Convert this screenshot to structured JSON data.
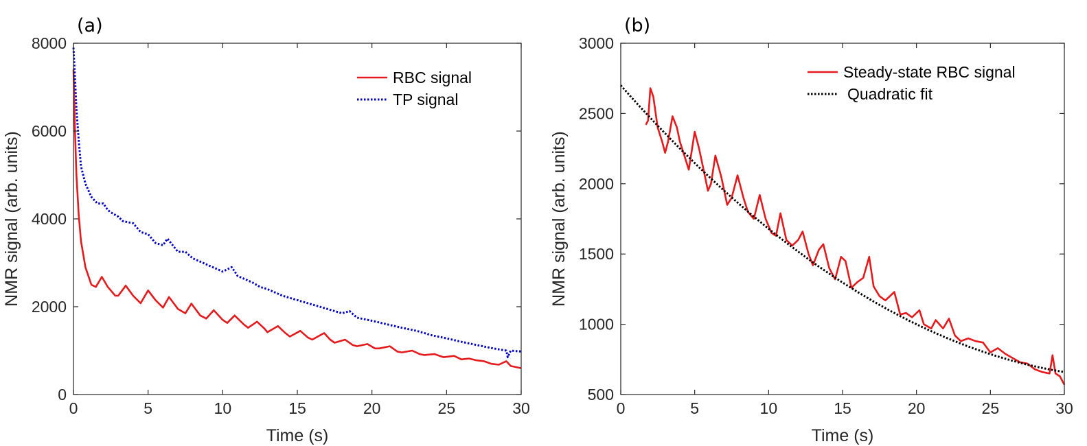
{
  "chart_data": [
    {
      "type": "line",
      "panel_label": "(a)",
      "xlabel": "Time (s)",
      "ylabel": "NMR signal (arb. units)",
      "xlim": [
        0,
        30
      ],
      "ylim": [
        0,
        8000
      ],
      "xticks": [
        0,
        5,
        10,
        15,
        20,
        25,
        30
      ],
      "yticks": [
        0,
        2000,
        4000,
        6000,
        8000
      ],
      "legend_position": "top-right",
      "series": [
        {
          "name": "RBC signal",
          "color": "#e41a1c",
          "style": "solid",
          "x": [
            0,
            0.1,
            0.2,
            0.35,
            0.5,
            0.8,
            1.2,
            1.5,
            1.9,
            2.3,
            2.8,
            3.0,
            3.5,
            4.0,
            4.5,
            5.0,
            5.5,
            6.0,
            6.4,
            7.0,
            7.5,
            7.9,
            8.5,
            8.9,
            9.4,
            10,
            10.3,
            10.8,
            11.4,
            11.7,
            12.3,
            12.8,
            13,
            13.7,
            14.2,
            14.5,
            15.2,
            15.7,
            16,
            16.8,
            17.2,
            17.5,
            18.2,
            18.7,
            19,
            19.7,
            20.2,
            20.5,
            21.2,
            21.7,
            22,
            22.7,
            23.2,
            23.5,
            24.2,
            24.8,
            25.5,
            26,
            26.5,
            27,
            27.5,
            28,
            28.5,
            29,
            29.3,
            30
          ],
          "y": [
            7400,
            6000,
            5000,
            4100,
            3500,
            2900,
            2500,
            2450,
            2680,
            2450,
            2250,
            2250,
            2480,
            2250,
            2080,
            2370,
            2150,
            1980,
            2220,
            1950,
            1850,
            2070,
            1800,
            1730,
            1920,
            1700,
            1630,
            1800,
            1600,
            1520,
            1660,
            1500,
            1420,
            1560,
            1400,
            1320,
            1450,
            1300,
            1250,
            1400,
            1250,
            1180,
            1250,
            1130,
            1100,
            1150,
            1050,
            1050,
            1100,
            980,
            960,
            1000,
            920,
            900,
            920,
            850,
            880,
            800,
            820,
            780,
            760,
            700,
            680,
            760,
            650,
            600
          ]
        },
        {
          "name": "TP signal",
          "color": "#0000c8",
          "style": "dotted",
          "x": [
            0,
            0.1,
            0.2,
            0.35,
            0.5,
            0.8,
            1.2,
            1.6,
            2.0,
            2.3,
            2.5,
            3.0,
            3.3,
            4.0,
            4.5,
            5.0,
            5.5,
            6.0,
            6.3,
            7.0,
            7.5,
            8.0,
            9.0,
            10,
            10.6,
            11,
            12,
            12.5,
            13,
            14,
            15,
            16,
            17,
            18,
            18.5,
            19,
            20,
            21,
            22,
            23,
            24,
            25,
            26,
            27,
            28,
            29,
            29.1,
            29.3,
            30
          ],
          "y": [
            7900,
            7200,
            6500,
            5800,
            5200,
            4800,
            4500,
            4350,
            4350,
            4200,
            4150,
            4050,
            3950,
            3900,
            3700,
            3650,
            3450,
            3400,
            3550,
            3250,
            3250,
            3100,
            2950,
            2800,
            2900,
            2700,
            2550,
            2450,
            2400,
            2250,
            2150,
            2050,
            1950,
            1850,
            1900,
            1750,
            1680,
            1600,
            1520,
            1450,
            1350,
            1280,
            1200,
            1130,
            1060,
            1000,
            850,
            1000,
            980
          ]
        }
      ]
    },
    {
      "type": "line",
      "panel_label": "(b)",
      "xlabel": "Time (s)",
      "ylabel": "NMR signal (arb. units)",
      "xlim": [
        0,
        30
      ],
      "ylim": [
        500,
        3000
      ],
      "xticks": [
        0,
        5,
        10,
        15,
        20,
        25,
        30
      ],
      "yticks": [
        500,
        1000,
        1500,
        2000,
        2500,
        3000
      ],
      "legend_position": "top-right",
      "series": [
        {
          "name": "Steady-state RBC signal",
          "color": "#e41a1c",
          "style": "solid",
          "x": [
            1.7,
            1.85,
            2.0,
            2.2,
            2.5,
            2.8,
            3.0,
            3.2,
            3.5,
            3.8,
            4.0,
            4.3,
            4.6,
            5.0,
            5.3,
            5.6,
            5.9,
            6.1,
            6.4,
            6.8,
            7.2,
            7.5,
            7.9,
            8.3,
            8.6,
            9.0,
            9.4,
            9.8,
            10.2,
            10.5,
            10.8,
            11.2,
            11.6,
            12.0,
            12.3,
            12.7,
            13.0,
            13.4,
            13.7,
            14.1,
            14.5,
            14.9,
            15.2,
            15.6,
            16.0,
            16.4,
            16.8,
            17.1,
            17.5,
            17.9,
            18.5,
            18.9,
            19.3,
            19.7,
            20.2,
            20.5,
            21.0,
            21.3,
            21.8,
            22.2,
            22.6,
            23.0,
            23.5,
            24.0,
            24.5,
            25.0,
            25.5,
            26.0,
            26.5,
            27.0,
            27.5,
            28.0,
            28.5,
            29.0,
            29.2,
            29.4,
            29.7,
            30
          ],
          "y": [
            2420,
            2450,
            2680,
            2620,
            2400,
            2300,
            2220,
            2300,
            2480,
            2400,
            2300,
            2200,
            2100,
            2370,
            2250,
            2100,
            1950,
            2000,
            2200,
            2050,
            1850,
            1900,
            2060,
            1900,
            1800,
            1750,
            1920,
            1750,
            1650,
            1630,
            1790,
            1600,
            1560,
            1600,
            1660,
            1500,
            1420,
            1530,
            1570,
            1400,
            1320,
            1480,
            1450,
            1260,
            1300,
            1330,
            1480,
            1270,
            1200,
            1170,
            1230,
            1070,
            1080,
            1050,
            1100,
            1000,
            970,
            1030,
            970,
            1040,
            920,
            880,
            900,
            880,
            870,
            800,
            830,
            790,
            760,
            730,
            720,
            680,
            660,
            650,
            780,
            650,
            630,
            570
          ]
        },
        {
          "name": "Quadratic fit",
          "color": "#000000",
          "style": "dotted",
          "fit": {
            "coefficients": [
              2700,
              -119,
              1.7
            ],
            "x_range": [
              0,
              30
            ]
          }
        }
      ]
    }
  ]
}
